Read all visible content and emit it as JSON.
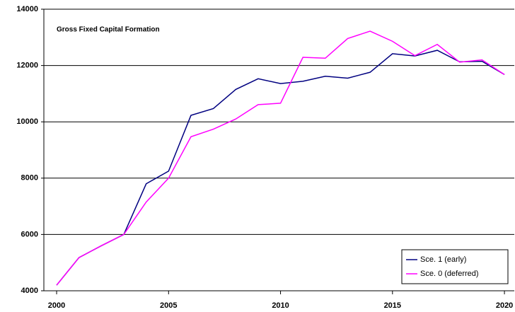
{
  "chart_data": {
    "type": "line",
    "title": "Gross Fixed Capital Formation",
    "x": [
      2000,
      2001,
      2002,
      2003,
      2004,
      2005,
      2006,
      2007,
      2008,
      2009,
      2010,
      2011,
      2012,
      2013,
      2014,
      2015,
      2016,
      2017,
      2018,
      2019,
      2020
    ],
    "series": [
      {
        "name": "Sce. 1 (early)",
        "color": "#000080",
        "values": [
          4200,
          5180,
          5600,
          6000,
          7800,
          8250,
          10230,
          10470,
          11150,
          11530,
          11360,
          11440,
          11620,
          11550,
          11760,
          12420,
          12340,
          12540,
          12130,
          12150,
          11680
        ]
      },
      {
        "name": "Sce. 0 (deferred)",
        "color": "#ff00ff",
        "values": [
          4200,
          5180,
          5600,
          6000,
          7150,
          8000,
          9470,
          9740,
          10100,
          10610,
          10660,
          12290,
          12260,
          12960,
          13220,
          12860,
          12350,
          12750,
          12120,
          12200,
          11680
        ]
      }
    ],
    "xlim": [
      1999.43,
      2020.44
    ],
    "xticks": [
      2000,
      2005,
      2010,
      2015,
      2020
    ],
    "ylim": [
      4000,
      14000
    ],
    "yticks": [
      4000,
      6000,
      8000,
      10000,
      12000,
      14000
    ],
    "grid": true,
    "legend": "lower right"
  }
}
